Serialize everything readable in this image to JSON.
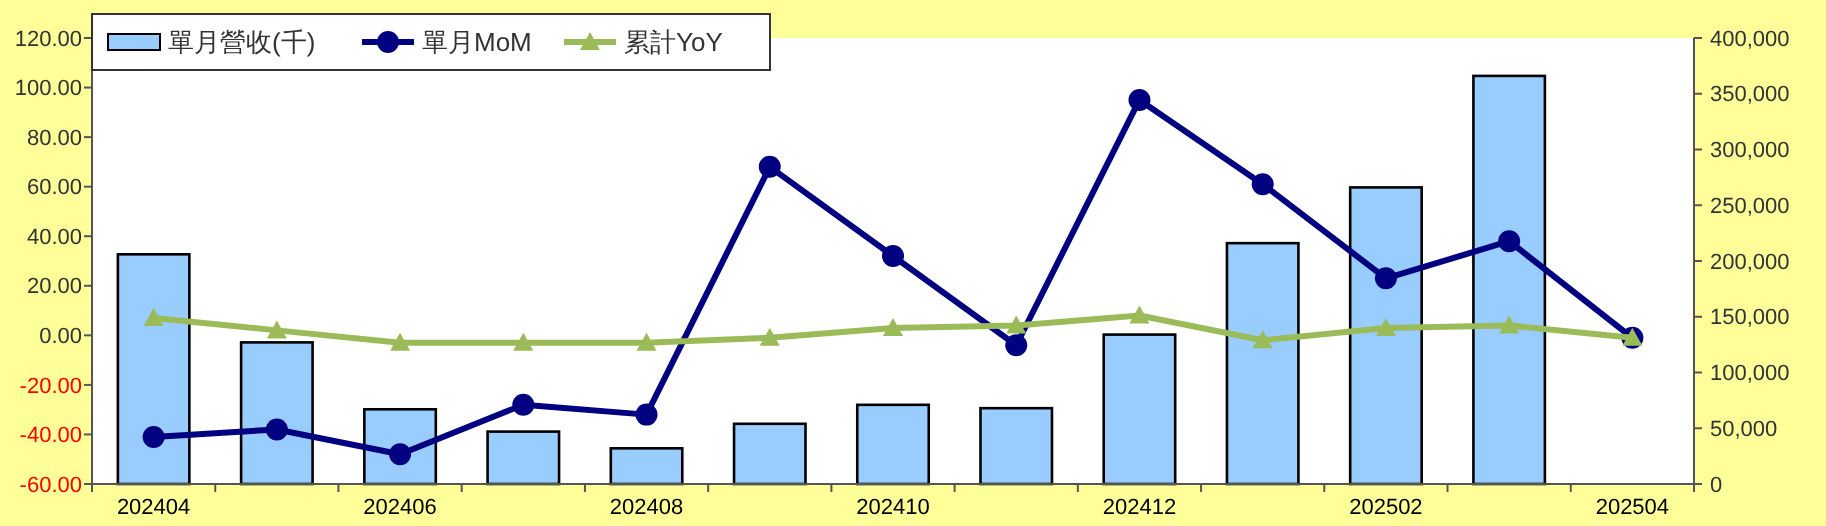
{
  "chart_data": {
    "type": "bar",
    "categories": [
      "202404",
      null,
      "202406",
      null,
      "202408",
      null,
      "202410",
      null,
      "202412",
      null,
      "202502",
      null,
      "202504"
    ],
    "series": [
      {
        "name": "單月營收(千)",
        "axis": "y2",
        "color": "#99ccff",
        "values": [
          206000,
          127000,
          67000,
          47000,
          32000,
          54000,
          71000,
          68000,
          134000,
          216000,
          266000,
          366000,
          null
        ]
      },
      {
        "name": "單月MoM",
        "type": "line",
        "color": "#000080",
        "marker": "circle",
        "values": [
          -41,
          -38,
          -48,
          -28,
          -32,
          68,
          32,
          -4,
          95,
          61,
          23,
          38,
          -1
        ]
      },
      {
        "name": "累計YoY",
        "type": "line",
        "color": "#9bbb59",
        "marker": "triangle",
        "values": [
          7,
          2,
          -3,
          -3,
          -3,
          -1,
          3,
          4,
          8,
          -2,
          3,
          4,
          -1
        ]
      }
    ],
    "ylim": [
      -60,
      120
    ],
    "yticks": [
      {
        "value": -60,
        "label": "-60.00"
      },
      {
        "value": -40,
        "label": "-40.00"
      },
      {
        "value": -20,
        "label": "-20.00"
      },
      {
        "value": 0,
        "label": "0.00"
      },
      {
        "value": 20,
        "label": "20.00"
      },
      {
        "value": 40,
        "label": "40.00"
      },
      {
        "value": 60,
        "label": "60.00"
      },
      {
        "value": 80,
        "label": "80.00"
      },
      {
        "value": 100,
        "label": "100.00"
      },
      {
        "value": 120,
        "label": "120.00"
      }
    ],
    "y2lim": [
      0,
      400000
    ],
    "y2ticks": [
      0,
      {
        "value": 50000,
        "label": "50,000"
      },
      {
        "value": 100000,
        "label": "100,000"
      },
      {
        "value": 150000,
        "label": "150,000"
      },
      {
        "value": 200000,
        "label": "200,000"
      },
      {
        "value": 250000,
        "label": "250,000"
      },
      {
        "value": 300000,
        "label": "300,000"
      },
      {
        "value": 350000,
        "label": "350,000"
      },
      {
        "value": 400000,
        "label": "400,000"
      }
    ],
    "legend": "top left",
    "grid": false
  }
}
